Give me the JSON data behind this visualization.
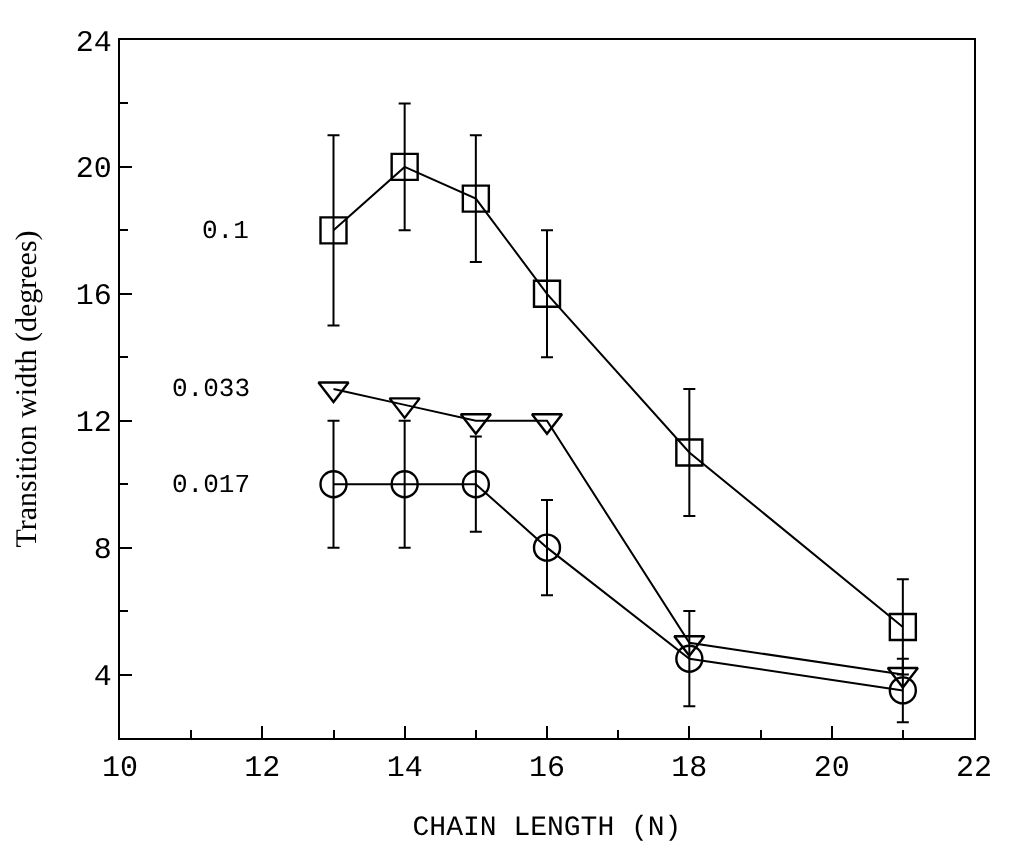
{
  "chart_data": {
    "type": "line",
    "xlabel": "CHAIN LENGTH (N)",
    "ylabel": "Transition width (degrees)",
    "xlim": [
      10,
      22
    ],
    "xticks": [
      10,
      12,
      14,
      16,
      18,
      20,
      22
    ],
    "ylim": [
      2,
      24
    ],
    "yticks": [
      4,
      8,
      12,
      16,
      20,
      24
    ],
    "legend": false,
    "line_style": "solid",
    "series": [
      {
        "name": "0.1",
        "color": "#000000",
        "marker": "square",
        "x": [
          13,
          14,
          15,
          16,
          18,
          21
        ],
        "values": [
          18,
          20,
          19,
          16,
          11,
          5.5
        ],
        "errors": [
          [
            15,
            21
          ],
          [
            18,
            22
          ],
          [
            17,
            21
          ],
          [
            14,
            18
          ],
          [
            9,
            13
          ],
          [
            4,
            7
          ]
        ]
      },
      {
        "name": "0.033",
        "color": "#000000",
        "marker": "triangle",
        "x": [
          13,
          14,
          15,
          16,
          18,
          21
        ],
        "values": [
          13,
          12.5,
          12,
          12,
          5,
          4
        ]
      },
      {
        "name": "0.017",
        "color": "#000000",
        "marker": "circle",
        "x": [
          13,
          14,
          15,
          16,
          18,
          21
        ],
        "values": [
          10,
          10,
          10,
          8,
          4.5,
          3.5
        ],
        "errors": [
          [
            8,
            12
          ],
          [
            8,
            12
          ],
          [
            8.5,
            11.5
          ],
          [
            6.5,
            9.5
          ],
          [
            3,
            6
          ],
          [
            2.5,
            4.5
          ]
        ]
      }
    ]
  }
}
